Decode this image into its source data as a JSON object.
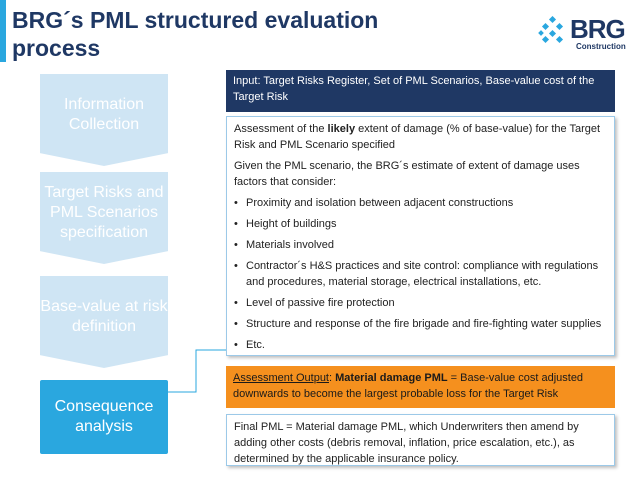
{
  "title": "BRG´s PML structured evaluation process",
  "logo": {
    "name": "BRG",
    "subtitle": "Construction",
    "colors": {
      "dark": "#1f3864",
      "light": "#2aa7df"
    }
  },
  "steps": [
    {
      "label": "Information Collection",
      "active": false
    },
    {
      "label": "Target Risks and PML Scenarios specification",
      "active": false
    },
    {
      "label": "Base-value at risk definition",
      "active": false
    },
    {
      "label": "Consequence analysis",
      "active": true
    }
  ],
  "input_box": "Input: Target Risks Register, Set of PML Scenarios, Base-value cost of the Target Risk",
  "assessment": {
    "intro_pre": "Assessment of the ",
    "intro_bold": "likely",
    "intro_post": " extent of damage (% of base-value) for the Target Risk and PML Scenario specified",
    "lead": "Given the PML scenario, the BRG´s estimate of extent of damage uses factors that consider:",
    "factors": [
      "Proximity and isolation between adjacent constructions",
      "Height of buildings",
      "Materials involved",
      "Contractor´s H&S practices and site control: compliance with regulations and procedures, material storage, electrical installations, etc.",
      "Level of passive fire protection",
      "Structure and response of the fire brigade and fire-fighting water supplies",
      "Etc."
    ]
  },
  "output_box": {
    "label": "Assessment Output",
    "colon": ": ",
    "bold": "Material damage PML",
    "text": " = Base-value cost adjusted downwards to become the largest probable loss for the Target Risk"
  },
  "final_box": "Final PML = Material damage PML, which Underwriters then amend by adding other costs (debris removal, inflation, price escalation, etc.), as determined by the applicable insurance policy.",
  "colors": {
    "navy": "#1f3864",
    "accent_blue": "#2aa7df",
    "pale_blue": "#cfe5f4",
    "orange": "#f5901e"
  }
}
